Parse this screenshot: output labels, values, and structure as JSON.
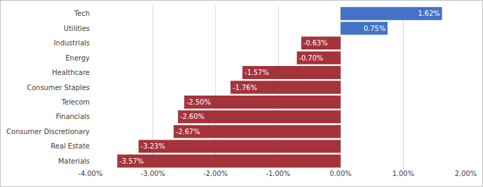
{
  "chart_data": {
    "type": "bar",
    "orientation": "horizontal",
    "categories": [
      "Tech",
      "Utilities",
      "Industrials",
      "Energy",
      "Healthcare",
      "Consumer Staples",
      "Telecom",
      "Financials",
      "Consumer Discretionary",
      "Real Estate",
      "Materials"
    ],
    "values": [
      1.62,
      0.75,
      -0.63,
      -0.7,
      -1.57,
      -1.76,
      -2.5,
      -2.6,
      -2.67,
      -3.23,
      -3.57
    ],
    "value_labels": [
      "1.62%",
      "0.75%",
      "-0.63%",
      "-0.70%",
      "-1.57%",
      "-1.76%",
      "-2.50%",
      "-2.60%",
      "-2.67%",
      "-3.23%",
      "-3.57%"
    ],
    "colors": [
      "#4472c4",
      "#4472c4",
      "#a4343a",
      "#a4343a",
      "#a4343a",
      "#a4343a",
      "#a4343a",
      "#a4343a",
      "#a4343a",
      "#a4343a",
      "#a4343a"
    ],
    "xlim": [
      -4,
      2
    ],
    "xticks": [
      {
        "value": -4,
        "label": "-4.00%"
      },
      {
        "value": -3,
        "label": "-3.00%"
      },
      {
        "value": -2,
        "label": "-2.00%"
      },
      {
        "value": -1,
        "label": "-1.00%"
      },
      {
        "value": 0,
        "label": "0.00%"
      },
      {
        "value": 1,
        "label": "1.00%"
      },
      {
        "value": 2,
        "label": "2.00%"
      }
    ],
    "grid": true,
    "data_labels": true
  }
}
